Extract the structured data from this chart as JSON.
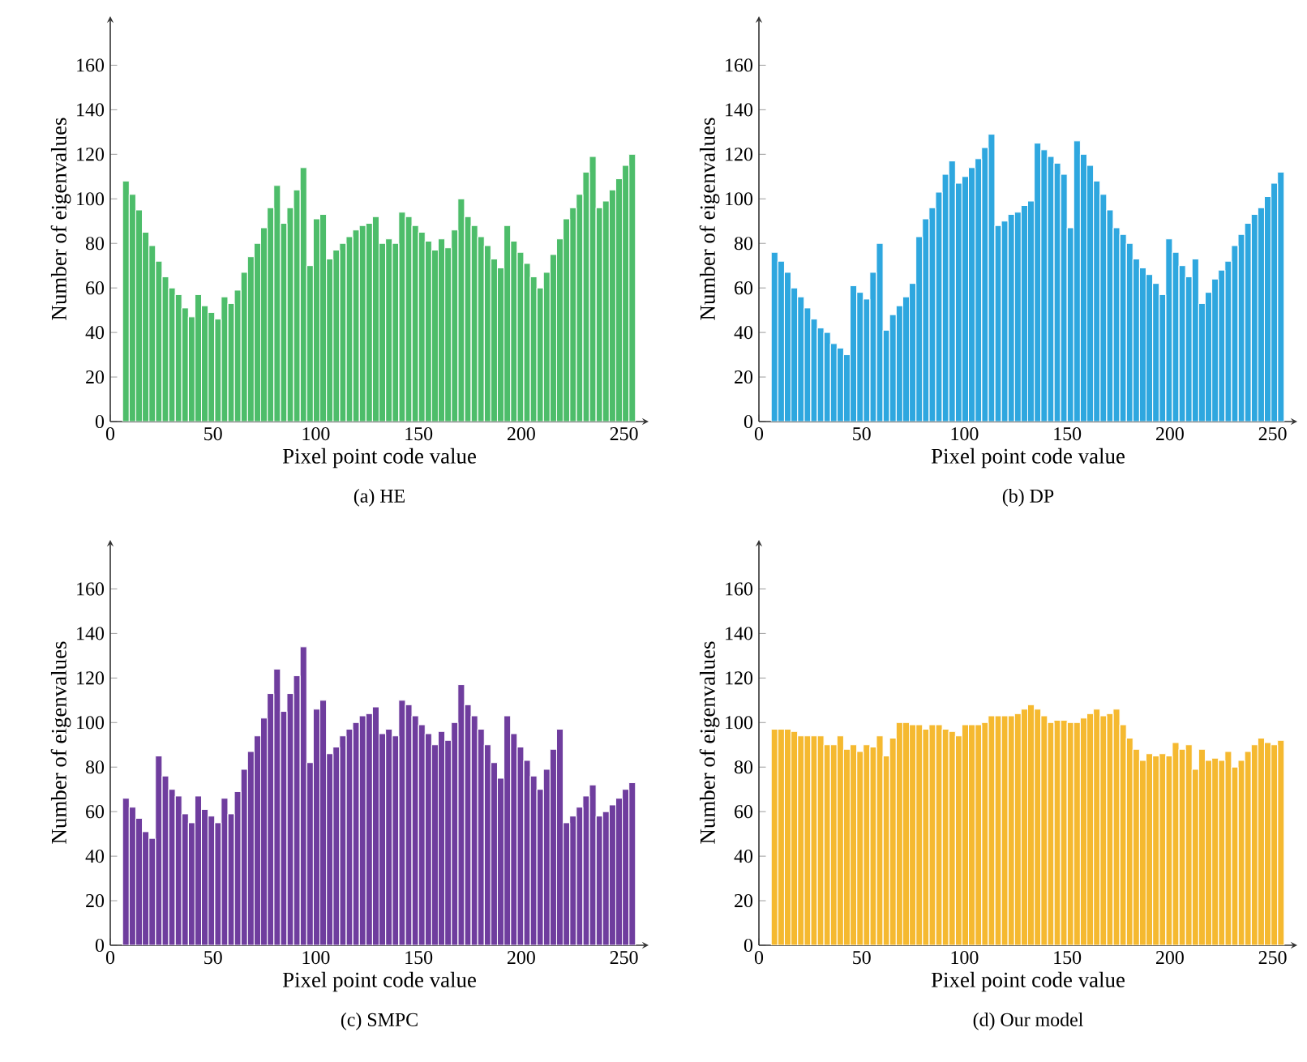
{
  "chart_data": [
    {
      "type": "histogram",
      "title": "(a) HE",
      "xlabel": "Pixel point code value",
      "ylabel": "Number of eigenvalues",
      "color": "#4dbd6a",
      "xlim": [
        0,
        262
      ],
      "ylim": [
        0,
        182
      ],
      "xticks": [
        0,
        50,
        100,
        150,
        200,
        250
      ],
      "yticks": [
        0,
        20,
        40,
        60,
        80,
        100,
        120,
        140,
        160
      ],
      "bins": [
        6,
        9.2,
        12.4,
        15.6,
        18.8,
        22,
        25.2,
        28.4,
        31.6,
        34.8,
        38,
        41.2,
        44.4,
        47.6,
        50.8,
        54,
        57.2,
        60.4,
        63.6,
        66.8,
        70,
        73.2,
        76.4,
        79.6,
        82.8,
        86,
        89.2,
        92.4,
        95.6,
        98.8,
        102,
        105.2,
        108.4,
        111.6,
        114.8,
        118,
        121.2,
        124.4,
        127.6,
        130.8,
        134,
        137.2,
        140.4,
        143.6,
        146.8,
        150,
        153.2,
        156.4,
        159.6,
        162.8,
        166,
        169.2,
        172.4,
        175.6,
        178.8,
        182,
        185.2,
        188.4,
        191.6,
        194.8,
        198,
        201.2,
        204.4,
        207.6,
        210.8,
        214,
        217.2,
        220.4,
        223.6,
        226.8,
        230,
        233.2,
        236.4,
        239.6,
        242.8,
        246,
        249.2,
        252.4,
        255.6
      ],
      "values": [
        108,
        102,
        95,
        85,
        79,
        72,
        65,
        60,
        57,
        51,
        47,
        57,
        52,
        49,
        46,
        56,
        53,
        59,
        67,
        74,
        80,
        87,
        96,
        106,
        89,
        96,
        104,
        114,
        70,
        91,
        93,
        73,
        77,
        80,
        83,
        86,
        88,
        89,
        92,
        80,
        82,
        80,
        94,
        92,
        88,
        85,
        81,
        77,
        82,
        78,
        86,
        100,
        92,
        88,
        83,
        79,
        73,
        69,
        88,
        81,
        76,
        71,
        65,
        60,
        67,
        75,
        82,
        91,
        96,
        102,
        112,
        119,
        96,
        99,
        104,
        109,
        115,
        120
      ]
    },
    {
      "type": "histogram",
      "title": "(b) DP",
      "xlabel": "Pixel point code value",
      "ylabel": "Number of eigenvalues",
      "color": "#2ea7df",
      "xlim": [
        0,
        262
      ],
      "ylim": [
        0,
        182
      ],
      "xticks": [
        0,
        50,
        100,
        150,
        200,
        250
      ],
      "yticks": [
        0,
        20,
        40,
        60,
        80,
        100,
        120,
        140,
        160
      ],
      "bins": [
        6,
        9.2,
        12.4,
        15.6,
        18.8,
        22,
        25.2,
        28.4,
        31.6,
        34.8,
        38,
        41.2,
        44.4,
        47.6,
        50.8,
        54,
        57.2,
        60.4,
        63.6,
        66.8,
        70,
        73.2,
        76.4,
        79.6,
        82.8,
        86,
        89.2,
        92.4,
        95.6,
        98.8,
        102,
        105.2,
        108.4,
        111.6,
        114.8,
        118,
        121.2,
        124.4,
        127.6,
        130.8,
        134,
        137.2,
        140.4,
        143.6,
        146.8,
        150,
        153.2,
        156.4,
        159.6,
        162.8,
        166,
        169.2,
        172.4,
        175.6,
        178.8,
        182,
        185.2,
        188.4,
        191.6,
        194.8,
        198,
        201.2,
        204.4,
        207.6,
        210.8,
        214,
        217.2,
        220.4,
        223.6,
        226.8,
        230,
        233.2,
        236.4,
        239.6,
        242.8,
        246,
        249.2,
        252.4,
        255.6
      ],
      "values": [
        76,
        72,
        67,
        60,
        56,
        51,
        46,
        42,
        40,
        35,
        33,
        30,
        61,
        58,
        55,
        67,
        80,
        41,
        48,
        52,
        56,
        62,
        83,
        91,
        96,
        103,
        111,
        117,
        107,
        110,
        114,
        118,
        123,
        129,
        88,
        90,
        93,
        94,
        97,
        99,
        125,
        122,
        119,
        116,
        111,
        87,
        126,
        120,
        115,
        108,
        102,
        95,
        87,
        84,
        80,
        73,
        69,
        66,
        62,
        57,
        82,
        76,
        70,
        65,
        73,
        53,
        58,
        64,
        68,
        72,
        79,
        84,
        89,
        93,
        96,
        101,
        107,
        112
      ]
    },
    {
      "type": "histogram",
      "title": "(c) SMPC",
      "xlabel": "Pixel point code value",
      "ylabel": "Number of eigenvalues",
      "color": "#6f3d9e",
      "xlim": [
        0,
        262
      ],
      "ylim": [
        0,
        182
      ],
      "xticks": [
        0,
        50,
        100,
        150,
        200,
        250
      ],
      "yticks": [
        0,
        20,
        40,
        60,
        80,
        100,
        120,
        140,
        160
      ],
      "bins": [
        6,
        9.2,
        12.4,
        15.6,
        18.8,
        22,
        25.2,
        28.4,
        31.6,
        34.8,
        38,
        41.2,
        44.4,
        47.6,
        50.8,
        54,
        57.2,
        60.4,
        63.6,
        66.8,
        70,
        73.2,
        76.4,
        79.6,
        82.8,
        86,
        89.2,
        92.4,
        95.6,
        98.8,
        102,
        105.2,
        108.4,
        111.6,
        114.8,
        118,
        121.2,
        124.4,
        127.6,
        130.8,
        134,
        137.2,
        140.4,
        143.6,
        146.8,
        150,
        153.2,
        156.4,
        159.6,
        162.8,
        166,
        169.2,
        172.4,
        175.6,
        178.8,
        182,
        185.2,
        188.4,
        191.6,
        194.8,
        198,
        201.2,
        204.4,
        207.6,
        210.8,
        214,
        217.2,
        220.4,
        223.6,
        226.8,
        230,
        233.2,
        236.4,
        239.6,
        242.8,
        246,
        249.2,
        252.4,
        255.6
      ],
      "values": [
        66,
        62,
        57,
        51,
        48,
        85,
        76,
        70,
        67,
        59,
        55,
        67,
        61,
        58,
        55,
        66,
        59,
        69,
        79,
        87,
        94,
        102,
        113,
        124,
        105,
        113,
        121,
        134,
        82,
        106,
        110,
        86,
        89,
        94,
        97,
        100,
        103,
        104,
        107,
        95,
        97,
        94,
        110,
        108,
        103,
        99,
        95,
        90,
        96,
        92,
        100,
        117,
        108,
        103,
        97,
        90,
        82,
        75,
        103,
        95,
        89,
        83,
        76,
        70,
        79,
        88,
        97,
        55,
        58,
        62,
        67,
        72,
        58,
        60,
        63,
        66,
        70,
        73
      ]
    },
    {
      "type": "histogram",
      "title": "(d) Our model",
      "xlabel": "Pixel point code value",
      "ylabel": "Number of eigenvalues",
      "color": "#f5b930",
      "xlim": [
        0,
        262
      ],
      "ylim": [
        0,
        182
      ],
      "xticks": [
        0,
        50,
        100,
        150,
        200,
        250
      ],
      "yticks": [
        0,
        20,
        40,
        60,
        80,
        100,
        120,
        140,
        160
      ],
      "bins": [
        6,
        9.2,
        12.4,
        15.6,
        18.8,
        22,
        25.2,
        28.4,
        31.6,
        34.8,
        38,
        41.2,
        44.4,
        47.6,
        50.8,
        54,
        57.2,
        60.4,
        63.6,
        66.8,
        70,
        73.2,
        76.4,
        79.6,
        82.8,
        86,
        89.2,
        92.4,
        95.6,
        98.8,
        102,
        105.2,
        108.4,
        111.6,
        114.8,
        118,
        121.2,
        124.4,
        127.6,
        130.8,
        134,
        137.2,
        140.4,
        143.6,
        146.8,
        150,
        153.2,
        156.4,
        159.6,
        162.8,
        166,
        169.2,
        172.4,
        175.6,
        178.8,
        182,
        185.2,
        188.4,
        191.6,
        194.8,
        198,
        201.2,
        204.4,
        207.6,
        210.8,
        214,
        217.2,
        220.4,
        223.6,
        226.8,
        230,
        233.2,
        236.4,
        239.6,
        242.8,
        246,
        249.2,
        252.4,
        255.6
      ],
      "values": [
        97,
        97,
        97,
        96,
        94,
        94,
        94,
        94,
        90,
        90,
        94,
        88,
        90,
        87,
        90,
        89,
        94,
        85,
        93,
        100,
        100,
        99,
        99,
        97,
        99,
        99,
        97,
        96,
        94,
        99,
        99,
        99,
        100,
        103,
        103,
        103,
        103,
        104,
        106,
        108,
        106,
        103,
        100,
        101,
        101,
        100,
        100,
        102,
        104,
        106,
        103,
        104,
        106,
        99,
        93,
        88,
        83,
        86,
        85,
        86,
        85,
        91,
        88,
        90,
        79,
        88,
        83,
        84,
        83,
        87,
        80,
        83,
        87,
        90,
        93,
        91,
        90,
        92
      ]
    }
  ]
}
